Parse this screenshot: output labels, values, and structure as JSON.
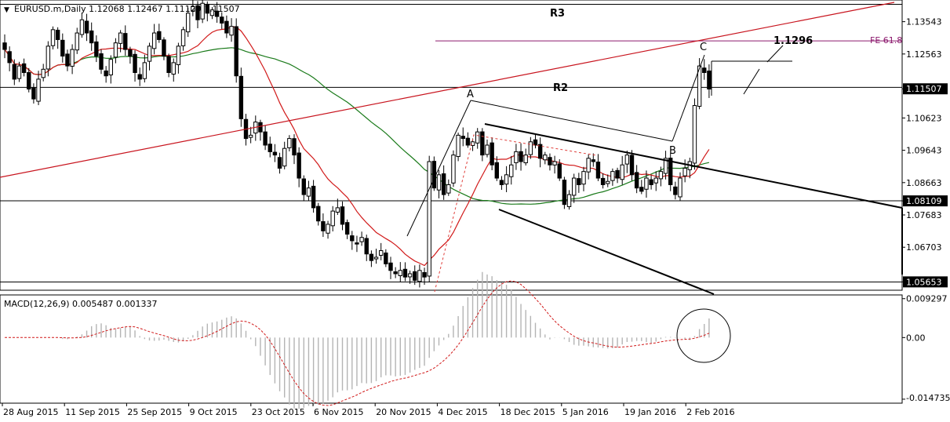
{
  "header": {
    "symbol_line": "EURUSD.m,Daily  1.12068 1.12467 1.11129 1.11507",
    "macd_line": "MACD(12,26,9) 0.005487 0.001337"
  },
  "chart_data": {
    "type": "candlestick",
    "symbol": "EURUSD.m",
    "timeframe": "Daily",
    "ohlc_last": {
      "open": 1.12068,
      "high": 1.12467,
      "low": 1.11129,
      "close": 1.11507
    },
    "price_ticks": [
      "1.13543",
      "1.12563",
      "1.11507",
      "1.10623",
      "1.09643",
      "1.08663",
      "1.08109",
      "1.07683",
      "1.06703",
      "1.05653"
    ],
    "current_price_label": "1.11507",
    "marked_price_labels": [
      "1.08109",
      "1.05653"
    ],
    "ylim": [
      1.054,
      1.142
    ],
    "x_ticks": [
      "28 Aug 2015",
      "11 Sep 2015",
      "25 Sep 2015",
      "9 Oct 2015",
      "23 Oct 2015",
      "6 Nov 2015",
      "20 Nov 2015",
      "4 Dec 2015",
      "18 Dec 2015",
      "5 Jan 2016",
      "19 Jan 2016",
      "2 Feb 2016"
    ],
    "closes": [
      1.127,
      1.123,
      1.118,
      1.122,
      1.12,
      1.115,
      1.112,
      1.118,
      1.121,
      1.128,
      1.133,
      1.13,
      1.125,
      1.122,
      1.127,
      1.132,
      1.136,
      1.132,
      1.129,
      1.125,
      1.121,
      1.119,
      1.124,
      1.129,
      1.132,
      1.127,
      1.125,
      1.12,
      1.118,
      1.123,
      1.128,
      1.132,
      1.13,
      1.125,
      1.12,
      1.123,
      1.128,
      1.133,
      1.138,
      1.14,
      1.136,
      1.141,
      1.138,
      1.139,
      1.137,
      1.135,
      1.132,
      1.134,
      1.119,
      1.106,
      1.1,
      1.101,
      1.105,
      1.102,
      1.098,
      1.096,
      1.095,
      1.091,
      1.097,
      1.1,
      1.095,
      1.088,
      1.083,
      1.085,
      1.079,
      1.075,
      1.072,
      1.074,
      1.078,
      1.079,
      1.074,
      1.071,
      1.069,
      1.068,
      1.07,
      1.065,
      1.063,
      1.064,
      1.066,
      1.062,
      1.06,
      1.059,
      1.06,
      1.058,
      1.059,
      1.057,
      1.06,
      1.058,
      1.093,
      1.085,
      1.089,
      1.083,
      1.086,
      1.095,
      1.101,
      1.1,
      1.098,
      1.099,
      1.102,
      1.095,
      1.098,
      1.092,
      1.088,
      1.086,
      1.089,
      1.092,
      1.096,
      1.093,
      1.095,
      1.099,
      1.098,
      1.094,
      1.095,
      1.092,
      1.093,
      1.088,
      1.08,
      1.083,
      1.088,
      1.086,
      1.09,
      1.094,
      1.093,
      1.088,
      1.086,
      1.087,
      1.09,
      1.088,
      1.092,
      1.095,
      1.089,
      1.085,
      1.084,
      1.088,
      1.086,
      1.088,
      1.09,
      1.094,
      1.086,
      1.083,
      1.088,
      1.091,
      1.093,
      1.11,
      1.122,
      1.12,
      1.115
    ],
    "levels": [
      {
        "label": "R3",
        "price": 1.1407
      },
      {
        "label": "FE 61.8",
        "price": 1.1296
      },
      {
        "label": "R2",
        "price": 1.1155
      },
      {
        "label": "",
        "price": 1.0811
      },
      {
        "label": "",
        "price": 1.0565
      }
    ],
    "annotations": {
      "point_a": "A",
      "point_b": "B",
      "point_c": "C",
      "target": "1.1296"
    },
    "macd": {
      "label": "MACD(12,26,9)",
      "main": 0.005487,
      "signal": 0.001337,
      "ticks": [
        "0.009297",
        "0.00",
        "-0.014735"
      ],
      "ylim": [
        -0.0155,
        0.01
      ]
    },
    "grid": false
  },
  "colors": {
    "background": "#ffffff",
    "bull_candle": "#ffffff",
    "bear_candle": "#000000",
    "ma_green": "#1a7a1a",
    "ma_red": "#d11a1a",
    "trend_red": "#c8141e",
    "fe_purple": "#8c1a6e",
    "price_label_bg": "#000000",
    "macd_hist": "#b4b4b4",
    "macd_signal": "#d11a1a"
  }
}
